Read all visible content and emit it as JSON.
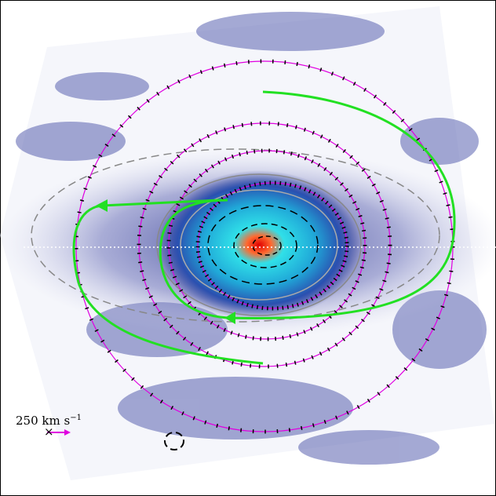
{
  "scale_bar": {
    "label": "250 km s",
    "exponent": "−1"
  }
}
